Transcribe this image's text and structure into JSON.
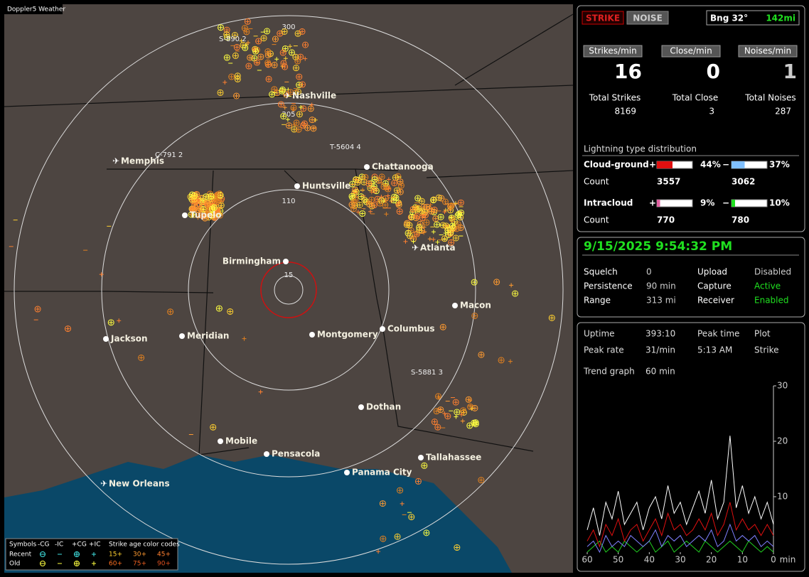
{
  "map": {
    "title": "Doppler5 Weather",
    "rings": [
      "300",
      "205",
      "110",
      "15"
    ],
    "cities": [
      "Nashville",
      "Memphis",
      "Chattanooga",
      "Huntsville",
      "Tupelo",
      "Atlanta",
      "Birmingham",
      "Macon",
      "Jackson",
      "Meridian",
      "Montgomery",
      "Columbus",
      "Dothan",
      "Mobile",
      "Pensacola",
      "Tallahassee",
      "Panama City",
      "New Orleans"
    ],
    "storms": [
      "S-890 2",
      "C-791 2",
      "T-5604 4",
      "S-5881 3"
    ],
    "legend": {
      "symbols": "Symbols",
      "cols": [
        "-CG",
        "-IC",
        "+CG",
        "+IC"
      ],
      "age_title": "Strike age color codes",
      "rows": [
        {
          "label": "Recent",
          "ages": [
            "15+",
            "30+",
            "45+"
          ]
        },
        {
          "label": "Old",
          "ages": [
            "60+",
            "75+",
            "90+"
          ]
        }
      ]
    }
  },
  "header": {
    "strike": "STRIKE",
    "noise": "NOISE",
    "bearing": "Bng 32°",
    "distance": "142mi"
  },
  "rates": [
    {
      "label": "Strikes/min",
      "value": "16"
    },
    {
      "label": "Close/min",
      "value": "0"
    },
    {
      "label": "Noises/min",
      "value": "1"
    }
  ],
  "totals": [
    {
      "label": "Total Strikes",
      "value": "8169"
    },
    {
      "label": "Total Close",
      "value": "3"
    },
    {
      "label": "Total Noises",
      "value": "287"
    }
  ],
  "distribution": {
    "title": "Lightning type distribution",
    "count_label": "Count",
    "rows": [
      {
        "name": "Cloud-ground",
        "pos_sign": "+",
        "neg_sign": "−",
        "pos": {
          "value": 44,
          "label": "44%"
        },
        "neg": {
          "value": 37,
          "label": "37%"
        },
        "pos_count": "3557",
        "neg_count": "3062"
      },
      {
        "name": "Intracloud",
        "pos_sign": "+",
        "neg_sign": "−",
        "pos": {
          "value": 9,
          "label": "9%"
        },
        "neg": {
          "value": 10,
          "label": "10%"
        },
        "pos_count": "770",
        "neg_count": "780"
      }
    ]
  },
  "status": {
    "datetime": "9/15/2025 9:54:32 PM",
    "settings": [
      [
        "Squelch",
        "0"
      ],
      [
        "Persistence",
        "90 min"
      ],
      [
        "Range",
        "313 mi"
      ],
      [
        "Upload",
        "Disabled"
      ],
      [
        "Capture",
        "Active"
      ],
      [
        "Receiver",
        "Enabled"
      ]
    ]
  },
  "stats": {
    "rows": [
      [
        "Uptime",
        "393:10",
        "Peak time",
        "Plot"
      ],
      [
        "Peak rate",
        "31/min",
        "5:13 AM",
        "Strike"
      ]
    ],
    "trend_label": "Trend graph",
    "trend_window": "60 min"
  },
  "chart_data": {
    "type": "line",
    "xlabel": "min",
    "x": [
      60,
      58,
      56,
      54,
      52,
      50,
      48,
      46,
      44,
      42,
      40,
      38,
      36,
      34,
      32,
      30,
      28,
      26,
      24,
      22,
      20,
      18,
      16,
      14,
      12,
      10,
      8,
      6,
      4,
      2,
      0
    ],
    "xlim": [
      60,
      0
    ],
    "xticks": [
      60,
      50,
      40,
      30,
      20,
      10,
      0
    ],
    "ylim": [
      0,
      30
    ],
    "yticks": [
      10,
      20,
      30
    ],
    "series": [
      {
        "color": "#ffffff",
        "values": [
          4,
          8,
          3,
          9,
          6,
          11,
          5,
          7,
          9,
          4,
          8,
          10,
          6,
          12,
          7,
          9,
          5,
          8,
          11,
          7,
          13,
          6,
          9,
          21,
          8,
          12,
          7,
          10,
          6,
          9,
          5
        ]
      },
      {
        "color": "#e01010",
        "values": [
          2,
          4,
          1,
          5,
          3,
          6,
          2,
          4,
          5,
          2,
          4,
          6,
          3,
          7,
          4,
          5,
          3,
          4,
          6,
          4,
          7,
          3,
          5,
          9,
          4,
          6,
          4,
          5,
          3,
          5,
          3
        ]
      },
      {
        "color": "#8080ff",
        "values": [
          1,
          2,
          0,
          3,
          1,
          2,
          1,
          3,
          2,
          1,
          2,
          4,
          1,
          3,
          2,
          3,
          1,
          2,
          3,
          2,
          4,
          1,
          2,
          5,
          2,
          3,
          2,
          3,
          1,
          2,
          1
        ]
      },
      {
        "color": "#20d020",
        "values": [
          0,
          1,
          2,
          0,
          1,
          0,
          2,
          1,
          0,
          1,
          2,
          0,
          1,
          2,
          0,
          1,
          2,
          1,
          0,
          2,
          1,
          0,
          1,
          2,
          1,
          0,
          2,
          1,
          0,
          1,
          0
        ]
      }
    ]
  }
}
